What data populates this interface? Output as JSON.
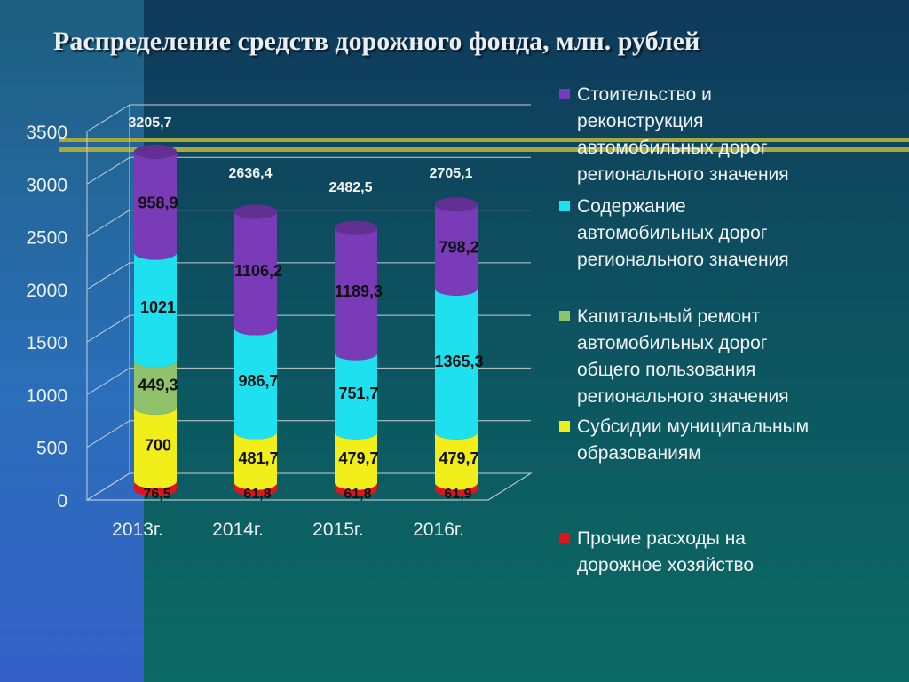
{
  "title": "Распределение средств дорожного фонда, млн. рублей",
  "chart_data": {
    "type": "bar",
    "stacked": true,
    "categories": [
      "2013г.",
      "2014г.",
      "2015г.",
      "2016г."
    ],
    "yticks": [
      "0",
      "500",
      "1000",
      "1500",
      "2000",
      "2500",
      "3000",
      "3500"
    ],
    "ylim": [
      0,
      3500
    ],
    "totals": [
      "3205,7",
      "2636,4",
      "2482,5",
      "2705,1"
    ],
    "series": [
      {
        "name": "Прочие расходы на дорожное хозяйство",
        "color": "#e0141c",
        "values": [
          76.5,
          61.8,
          61.8,
          61.9
        ],
        "labels": [
          "76,5",
          "61,8",
          "61,8",
          "61,9"
        ]
      },
      {
        "name": "Субсидии муниципальным образованиям",
        "color": "#f2ee1a",
        "values": [
          700,
          481.7,
          479.7,
          479.7
        ],
        "labels": [
          "700",
          "481,7",
          "479,7",
          "479,7"
        ]
      },
      {
        "name": "Капитальный ремонт автомобильных дорог общего пользования регионального значения",
        "color": "#8fc26a",
        "values": [
          449.3,
          0,
          0,
          0
        ],
        "labels": [
          "449,3",
          "",
          "",
          ""
        ]
      },
      {
        "name": "Содержание автомобильных дорог регионального значения",
        "color": "#1ee0ee",
        "values": [
          1021,
          986.7,
          751.7,
          1365.3
        ],
        "labels": [
          "1021",
          "986,7",
          "751,7",
          "1365,3"
        ]
      },
      {
        "name": "Стоительство и реконструкция автомобильных дорог регионального значения",
        "color": "#7a3bb8",
        "values": [
          958.9,
          1106.2,
          1189.3,
          798.2
        ],
        "labels": [
          "958,9",
          "1106,2",
          "1189,3",
          "798,2"
        ]
      }
    ],
    "legend_position": "right"
  },
  "legend": [
    {
      "label": "Стоительство и\nреконструкция\nавтомобильных дорог\nрегионального значения",
      "color": "#7a3bb8"
    },
    {
      "label": "Содержание\nавтомобильных дорог\nрегионального значения",
      "color": "#1ee0ee"
    },
    {
      "label": "Капитальный ремонт\nавтомобильных дорог\nобщего пользования\nрегионального значения",
      "color": "#8fc26a"
    },
    {
      "label": "Субсидии муниципальным\nобразованиям",
      "color": "#f2ee1a"
    },
    {
      "label": "Прочие расходы на\nдорожное хозяйство",
      "color": "#e0141c"
    }
  ]
}
